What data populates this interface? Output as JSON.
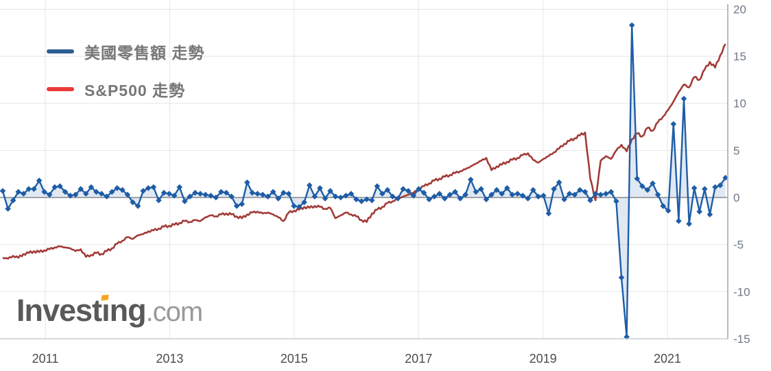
{
  "legend": {
    "items": [
      {
        "label": "美國零售額  走勢",
        "swatch_color": "#2d5e92"
      },
      {
        "label": "S&P500  走勢",
        "swatch_color": "#ea3b38"
      }
    ]
  },
  "watermark": {
    "brand_prefix": "Invest",
    "brand_i": "ı",
    "brand_suffix": "ng",
    "suffix": ".com",
    "accent_color": "#f7a528",
    "brand_color": "#58595b",
    "domain_color": "#97999b"
  },
  "axes": {
    "y_ticks": [
      20,
      15,
      10,
      5,
      0,
      -5,
      -10,
      -15
    ],
    "x_ticks": [
      2011,
      2013,
      2015,
      2017,
      2019,
      2021
    ],
    "y_label_color": "#6e7884",
    "x_label_color": "#4b4b4b",
    "grid_color": "#e5e5e5",
    "zero_line_color": "#a8a8a8",
    "axis_line_color": "#b6bac0",
    "bottom_line_color": "#c7cbd1"
  },
  "chart_data": {
    "type": "line",
    "title": "",
    "x_unit": "month",
    "start_month": "2010-04",
    "end_month": "2021-11",
    "ylim": [
      -15,
      20
    ],
    "y_gridline_step": 5,
    "grid": true,
    "legend_position": "top-left",
    "x_tick_years": [
      2011,
      2013,
      2015,
      2019,
      2017,
      2021
    ],
    "series": [
      {
        "name": "美國零售額  走勢",
        "style": "line+diamond-markers+area-to-zero",
        "color": "#1e5da6",
        "area_color": "rgba(32,95,170,0.14)",
        "values": [
          0.7,
          -1.2,
          -0.3,
          0.6,
          0.4,
          0.9,
          0.9,
          1.8,
          0.6,
          0.3,
          1.1,
          1.2,
          0.6,
          0.2,
          0.3,
          0.9,
          0.4,
          1.1,
          0.6,
          0.4,
          0.1,
          0.6,
          1.0,
          0.8,
          0.3,
          -0.5,
          -0.9,
          0.7,
          1.0,
          1.1,
          -0.3,
          0.5,
          0.4,
          0.2,
          1.1,
          -0.4,
          0.1,
          0.5,
          0.4,
          0.3,
          0.2,
          0.0,
          0.6,
          0.5,
          0.1,
          -0.9,
          -0.7,
          1.6,
          0.5,
          0.4,
          0.3,
          0.1,
          0.6,
          -0.1,
          0.5,
          0.4,
          -0.9,
          -1.0,
          -0.5,
          1.3,
          0.1,
          1.0,
          -0.1,
          0.7,
          0.1,
          0.0,
          0.2,
          0.4,
          -0.2,
          -0.4,
          -0.2,
          -0.3,
          1.2,
          0.4,
          0.8,
          0.1,
          -0.1,
          0.9,
          0.7,
          0.2,
          0.9,
          0.5,
          -0.2,
          0.1,
          0.4,
          -0.1,
          0.3,
          0.6,
          -0.1,
          0.3,
          1.9,
          0.6,
          0.9,
          -0.2,
          0.3,
          0.8,
          0.4,
          1.0,
          0.3,
          0.4,
          0.2,
          -0.1,
          0.8,
          0.1,
          0.2,
          -1.7,
          0.9,
          1.6,
          -0.2,
          0.4,
          0.3,
          0.8,
          0.6,
          -0.3,
          0.4,
          0.3,
          0.4,
          0.6,
          -0.4,
          -8.5,
          -14.8,
          18.3,
          2.0,
          1.2,
          0.8,
          1.5,
          0.3,
          -0.9,
          -1.4,
          7.8,
          -2.5,
          10.5,
          -2.8,
          1.0,
          -1.5,
          0.9,
          -1.8,
          1.1,
          1.3,
          2.1
        ]
      },
      {
        "name": "S&P500  走勢",
        "style": "line",
        "color": "#a23b37",
        "values": [
          -6.4,
          -6.5,
          -6.2,
          -6.4,
          -6.0,
          -5.9,
          -5.7,
          -5.8,
          -5.6,
          -5.5,
          -5.3,
          -5.2,
          -5.3,
          -5.4,
          -5.7,
          -5.5,
          -6.3,
          -6.1,
          -5.9,
          -6.0,
          -5.7,
          -5.4,
          -4.9,
          -4.6,
          -4.2,
          -4.4,
          -4.0,
          -3.9,
          -3.6,
          -3.5,
          -3.3,
          -3.1,
          -3.0,
          -2.9,
          -2.7,
          -2.5,
          -2.6,
          -2.4,
          -2.5,
          -2.1,
          -1.9,
          -2.0,
          -1.8,
          -1.7,
          -1.8,
          -2.0,
          -2.2,
          -1.8,
          -1.6,
          -1.5,
          -1.7,
          -1.6,
          -1.8,
          -2.1,
          -2.5,
          -1.6,
          -1.4,
          -1.3,
          -1.0,
          -1.1,
          -0.9,
          -1.0,
          -1.2,
          -1.1,
          -2.2,
          -1.9,
          -1.6,
          -1.8,
          -2.0,
          -2.4,
          -2.6,
          -1.7,
          -1.3,
          -1.0,
          -0.6,
          -0.4,
          -0.1,
          0.1,
          0.3,
          0.5,
          0.9,
          1.2,
          1.5,
          1.8,
          2.0,
          2.2,
          2.4,
          2.6,
          2.8,
          3.0,
          3.3,
          3.6,
          3.9,
          4.2,
          2.9,
          3.3,
          3.5,
          3.8,
          4.0,
          4.2,
          4.5,
          4.7,
          4.0,
          3.7,
          4.1,
          4.4,
          4.8,
          5.2,
          5.7,
          6.0,
          6.3,
          6.6,
          6.9,
          2.0,
          -0.3,
          3.9,
          4.4,
          4.1,
          5.0,
          5.6,
          4.9,
          6.2,
          6.8,
          6.5,
          7.4,
          7.1,
          8.0,
          8.6,
          9.3,
          10.2,
          11.2,
          12.0,
          11.7,
          12.8,
          12.5,
          13.6,
          14.4,
          13.8,
          15.1,
          16.3
        ]
      }
    ]
  }
}
